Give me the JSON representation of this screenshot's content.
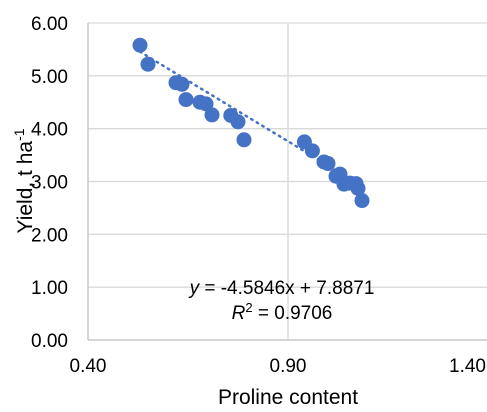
{
  "chart_data": {
    "type": "scatter",
    "xlabel": "Proline content",
    "ylabel": {
      "base": "Yield, t ha",
      "superscript": "-1"
    },
    "xlim": [
      0.4,
      1.4
    ],
    "ylim": [
      0.0,
      6.0
    ],
    "x_ticks": [
      0.4,
      0.9,
      1.4
    ],
    "x_tick_labels": [
      "0.40",
      "0.90",
      "1.40"
    ],
    "y_ticks": [
      0,
      1,
      2,
      3,
      4,
      5,
      6
    ],
    "y_tick_labels": [
      "0.00",
      "1.00",
      "2.00",
      "3.00",
      "4.00",
      "5.00",
      "6.00"
    ],
    "grid": true,
    "marker_color": "#4472c4",
    "points": [
      {
        "x": 0.53,
        "y": 5.58
      },
      {
        "x": 0.55,
        "y": 5.22
      },
      {
        "x": 0.62,
        "y": 4.87
      },
      {
        "x": 0.635,
        "y": 4.84
      },
      {
        "x": 0.645,
        "y": 4.55
      },
      {
        "x": 0.68,
        "y": 4.5
      },
      {
        "x": 0.695,
        "y": 4.47
      },
      {
        "x": 0.71,
        "y": 4.26
      },
      {
        "x": 0.757,
        "y": 4.25
      },
      {
        "x": 0.775,
        "y": 4.13
      },
      {
        "x": 0.79,
        "y": 3.79
      },
      {
        "x": 0.941,
        "y": 3.75
      },
      {
        "x": 0.961,
        "y": 3.58
      },
      {
        "x": 0.99,
        "y": 3.37
      },
      {
        "x": 1.0,
        "y": 3.34
      },
      {
        "x": 1.02,
        "y": 3.1
      },
      {
        "x": 1.03,
        "y": 3.14
      },
      {
        "x": 1.04,
        "y": 2.95
      },
      {
        "x": 1.055,
        "y": 2.97
      },
      {
        "x": 1.07,
        "y": 2.96
      },
      {
        "x": 1.075,
        "y": 2.87
      },
      {
        "x": 1.085,
        "y": 2.64
      }
    ],
    "trendline": {
      "type": "linear",
      "slope": -4.5846,
      "intercept": 7.8871,
      "x_range": [
        0.53,
        1.085
      ],
      "equation_prefix": "y",
      "equation_rest": " = -4.5846x + 7.8871",
      "r2_prefix": "R",
      "r2_sup": "2",
      "r2_rest": " = 0.9706"
    }
  }
}
